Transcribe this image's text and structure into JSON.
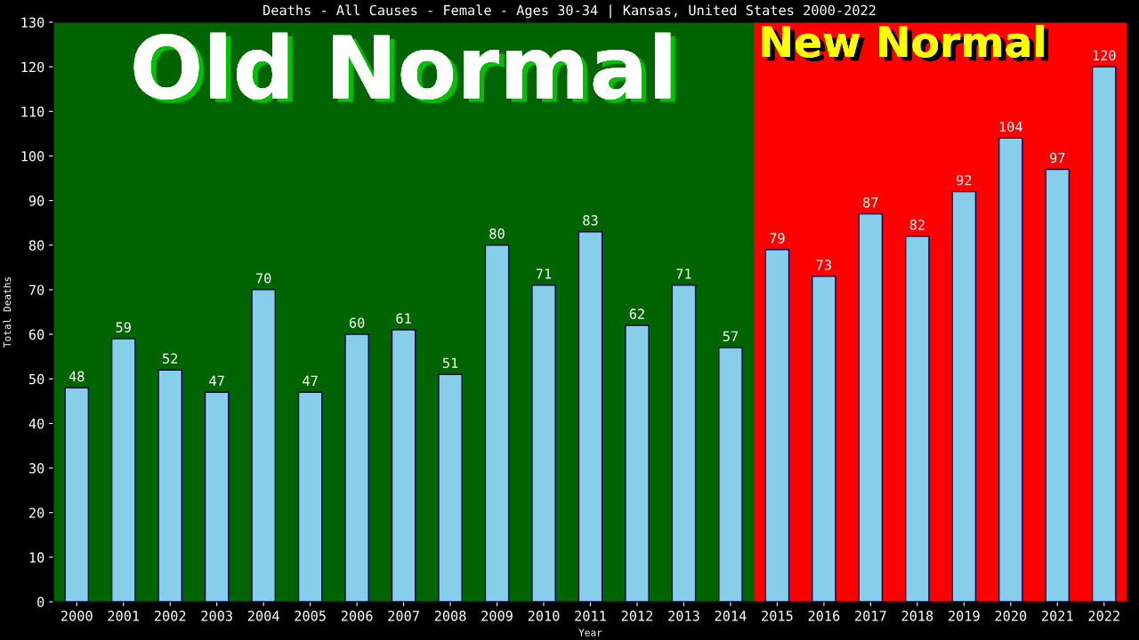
{
  "chart_data": {
    "type": "bar",
    "title": "Deaths - All Causes - Female - Ages 30-34 | Kansas, United States 2000-2022",
    "xlabel": "Year",
    "ylabel": "Total Deaths",
    "categories": [
      "2000",
      "2001",
      "2002",
      "2003",
      "2004",
      "2005",
      "2006",
      "2007",
      "2008",
      "2009",
      "2010",
      "2011",
      "2012",
      "2013",
      "2014",
      "2015",
      "2016",
      "2017",
      "2018",
      "2019",
      "2020",
      "2021",
      "2022"
    ],
    "values": [
      48,
      59,
      52,
      47,
      70,
      47,
      60,
      61,
      51,
      80,
      71,
      83,
      62,
      71,
      57,
      79,
      73,
      87,
      82,
      92,
      104,
      97,
      120
    ],
    "color": "#87ceeb",
    "data_labels": true,
    "grid": false,
    "legend": false,
    "ylim": [
      0,
      130
    ],
    "yticks": [
      0,
      10,
      20,
      30,
      40,
      50,
      60,
      70,
      80,
      90,
      100,
      110,
      120,
      130
    ],
    "bands": [
      {
        "axis": "x",
        "from": "2000",
        "to": "2014",
        "label": "Old Normal",
        "color": "#006400"
      },
      {
        "axis": "x",
        "from": "2015",
        "to": "2022",
        "label": "New Normal",
        "color": "#ff0000"
      }
    ]
  }
}
